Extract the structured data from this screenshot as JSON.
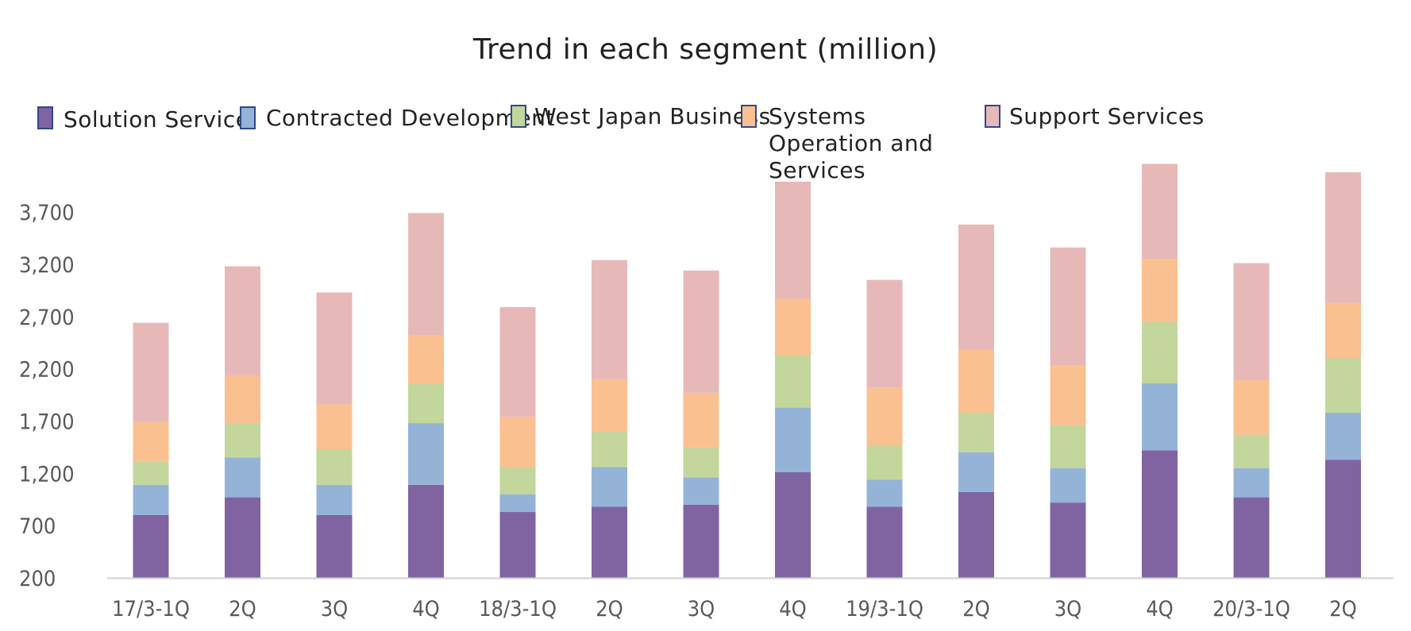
{
  "chart_data": {
    "type": "bar",
    "stacked": true,
    "title": "Trend in each segment (million)",
    "xlabel": "",
    "ylabel": "",
    "ylim": [
      200,
      4000
    ],
    "yticks": [
      "200",
      "700",
      "1,200",
      "1,700",
      "2,200",
      "2,700",
      "3,200",
      "3,700"
    ],
    "ytick_values": [
      200,
      700,
      1200,
      1700,
      2200,
      2700,
      3200,
      3700
    ],
    "grid": false,
    "legend_position": "top",
    "categories": [
      "17/3-1Q",
      "2Q",
      "3Q",
      "4Q",
      "18/3-1Q",
      "2Q",
      "3Q",
      "4Q",
      "19/3-1Q",
      "2Q",
      "3Q",
      "4Q",
      "20/3-1Q",
      "2Q"
    ],
    "series": [
      {
        "name": "Solution Service",
        "color": "#8064a2",
        "values": [
          600,
          770,
          600,
          890,
          630,
          680,
          700,
          1010,
          680,
          820,
          720,
          1220,
          770,
          1130
        ]
      },
      {
        "name": "Contracted Development",
        "color": "#95b3d7",
        "values": [
          290,
          380,
          290,
          590,
          170,
          380,
          260,
          620,
          260,
          380,
          330,
          640,
          280,
          450
        ]
      },
      {
        "name": "West Japan Business",
        "color": "#c3d69b",
        "values": [
          220,
          330,
          340,
          380,
          260,
          340,
          290,
          500,
          320,
          380,
          410,
          590,
          320,
          520
        ]
      },
      {
        "name": "Systems Operation and Services",
        "color": "#fac090",
        "values": [
          380,
          450,
          430,
          460,
          480,
          500,
          520,
          540,
          560,
          600,
          570,
          600,
          520,
          530
        ]
      },
      {
        "name": "Support Services",
        "color": "#e6b9b8",
        "values": [
          950,
          1050,
          1070,
          1170,
          1050,
          1140,
          1170,
          1120,
          1030,
          1200,
          1130,
          910,
          1120,
          1250
        ]
      }
    ]
  }
}
